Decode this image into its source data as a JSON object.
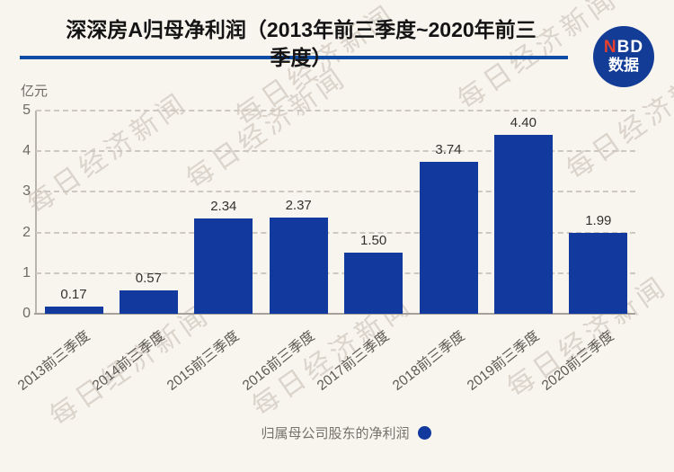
{
  "header": {
    "title_line1": "深深房A归母净利润（2013年前三季度~2020年前三",
    "title_line2": "季度）",
    "logo": {
      "n": "N",
      "bd": "BD",
      "subtitle": "数据"
    }
  },
  "unit_label": "亿元",
  "chart_data": {
    "type": "bar",
    "title": "深深房A归母净利润（2013年前三季度~2020年前三季度）",
    "ylabel": "亿元",
    "categories": [
      "2013前三季度",
      "2014前三季度",
      "2015前三季度",
      "2016前三季度",
      "2017前三季度",
      "2018前三季度",
      "2019前三季度",
      "2020前三季度"
    ],
    "values": [
      0.17,
      0.57,
      2.34,
      2.37,
      1.5,
      3.74,
      4.4,
      1.99
    ],
    "value_labels": [
      "0.17",
      "0.57",
      "2.34",
      "2.37",
      "1.50",
      "3.74",
      "4.40",
      "1.99"
    ],
    "ylim": [
      0,
      5
    ],
    "yticks": [
      0,
      1,
      2,
      3,
      4,
      5
    ],
    "grid": "horizontal-dashed",
    "legend": {
      "label": "归属母公司股东的净利润",
      "position": "bottom-center"
    }
  },
  "watermark": {
    "text": "每日经济新闻"
  },
  "colors": {
    "background": "#f8f4ee",
    "bar": "#11399e",
    "accent_line": "#0b4da4",
    "logo_blue": "#123c96",
    "logo_red": "#e8402d"
  }
}
